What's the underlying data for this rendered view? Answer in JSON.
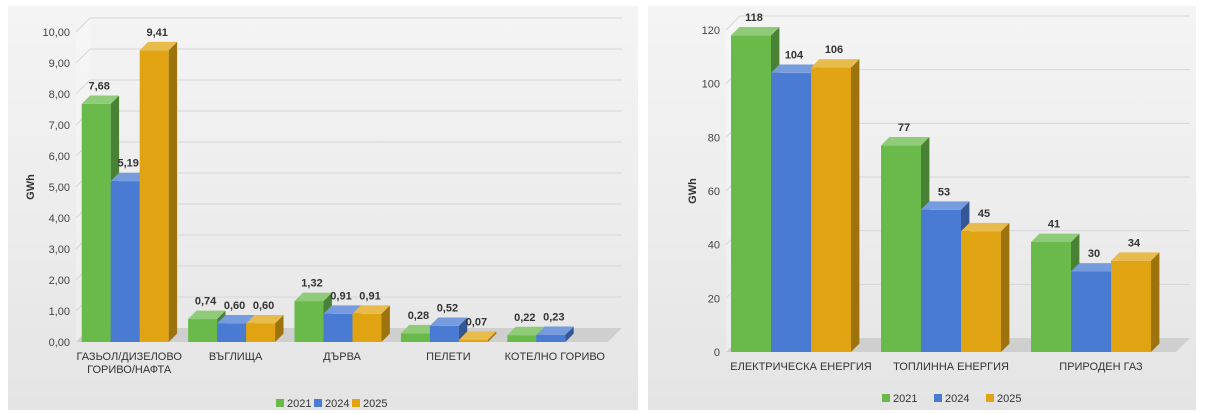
{
  "chart_data": [
    {
      "type": "bar",
      "ylabel": "GWh",
      "ylim": [
        0,
        10
      ],
      "yticks": [
        "0,00",
        "1,00",
        "2,00",
        "3,00",
        "4,00",
        "5,00",
        "6,00",
        "7,00",
        "8,00",
        "9,00",
        "10,00"
      ],
      "categories": [
        [
          "ГАЗЬОЛ/ДИЗЕЛОВО",
          "ГОРИВО/НАФТА"
        ],
        [
          "ВЪГЛИЩА"
        ],
        [
          "ДЪРВА"
        ],
        [
          "ПЕЛЕТИ"
        ],
        [
          "КОТЕЛНО ГОРИВО"
        ]
      ],
      "series": [
        {
          "name": "2021",
          "color": "#6aba4b",
          "values": [
            7.68,
            0.74,
            1.32,
            0.28,
            0.22
          ],
          "labels": [
            "7,68",
            "0,74",
            "1,32",
            "0,28",
            "0,22"
          ]
        },
        {
          "name": "2024",
          "color": "#4a7bd3",
          "values": [
            5.19,
            0.6,
            0.91,
            0.52,
            0.23
          ],
          "labels": [
            "5,19",
            "0,60",
            "0,91",
            "0,52",
            "0,23"
          ]
        },
        {
          "name": "2025",
          "color": "#e0a412",
          "values": [
            9.41,
            0.6,
            0.91,
            0.07,
            null
          ],
          "labels": [
            "9,41",
            "0,60",
            "0,91",
            "0,07",
            ""
          ]
        }
      ],
      "legend_position": "bottom",
      "grid": true
    },
    {
      "type": "bar",
      "ylabel": "GWh",
      "ylim": [
        0,
        120
      ],
      "yticks": [
        "0",
        "20",
        "40",
        "60",
        "80",
        "100",
        "120"
      ],
      "categories": [
        [
          "ЕЛЕКТРИЧЕСКА ЕНЕРГИЯ"
        ],
        [
          "ТОПЛИННА ЕНЕРГИЯ"
        ],
        [
          "ПРИРОДЕН ГАЗ"
        ]
      ],
      "series": [
        {
          "name": "2021",
          "color": "#6aba4b",
          "values": [
            118,
            77,
            41
          ],
          "labels": [
            "118",
            "77",
            "41"
          ]
        },
        {
          "name": "2024",
          "color": "#4a7bd3",
          "values": [
            104,
            53,
            30
          ],
          "labels": [
            "104",
            "53",
            "30"
          ]
        },
        {
          "name": "2025",
          "color": "#e0a412",
          "values": [
            106,
            45,
            34
          ],
          "labels": [
            "106",
            "45",
            "34"
          ]
        }
      ],
      "legend_position": "bottom",
      "grid": true
    }
  ]
}
